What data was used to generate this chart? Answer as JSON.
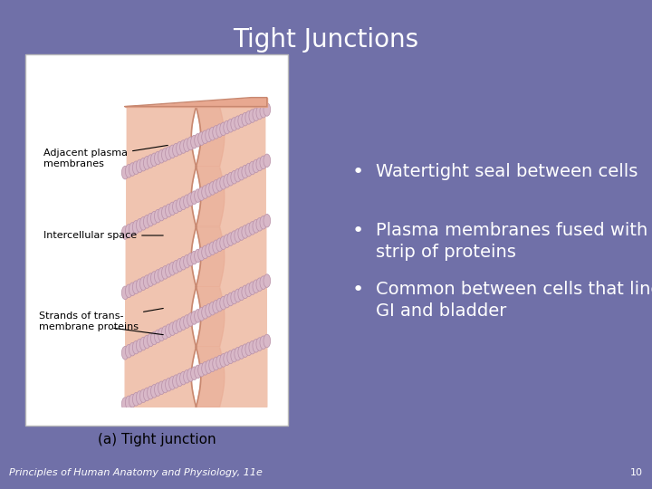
{
  "title": "Tight Junctions",
  "title_fontsize": 20,
  "title_color": "#ffffff",
  "background_color": "#7070a8",
  "bullet_points": [
    "Watertight seal between cells",
    "Plasma membranes fused with a\nstrip of proteins",
    "Common between cells that line\nGI and bladder"
  ],
  "bullet_fontsize": 14,
  "bullet_color": "#ffffff",
  "image_caption": "(a) Tight junction",
  "footer_text": "Principles of Human Anatomy and Physiology, 11e",
  "footer_page": "10",
  "footer_fontsize": 8,
  "footer_color": "#ffffff",
  "cell_fill": "#f0c4b0",
  "cell_edge": "#c88870",
  "cell_shade": "#e8a890",
  "protein_fill": "#d8b8c8",
  "protein_edge": "#b890a8",
  "label_fontsize": 8,
  "caption_fontsize": 11
}
